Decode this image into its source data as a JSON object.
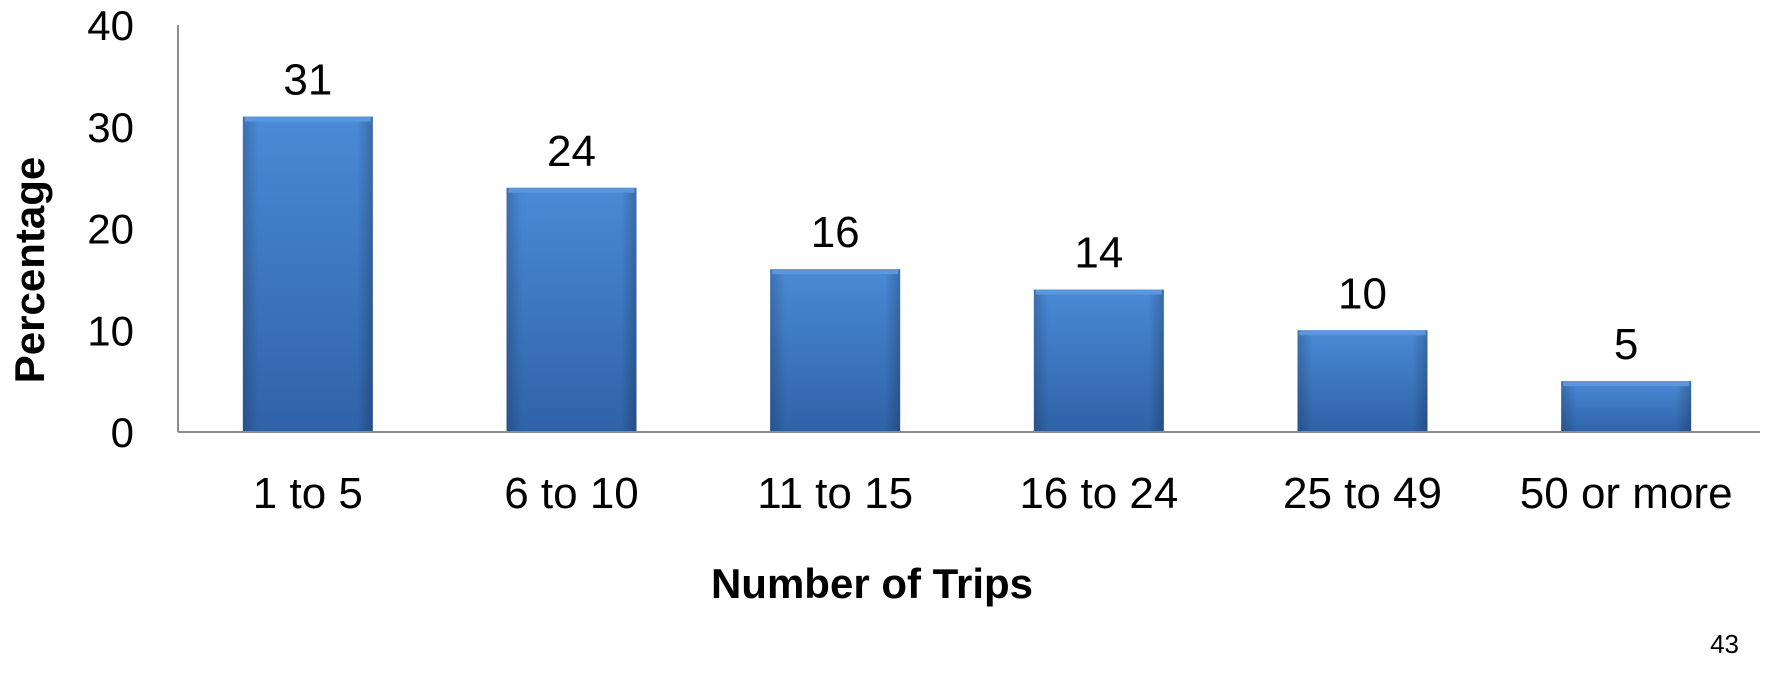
{
  "chart_data": {
    "type": "bar",
    "categories": [
      "1 to 5",
      "6 to 10",
      "11 to 15",
      "16 to 24",
      "25 to 49",
      "50 or more"
    ],
    "values": [
      31,
      24,
      16,
      14,
      10,
      5
    ],
    "data_labels": [
      "31",
      "24",
      "16",
      "14",
      "10",
      "5"
    ],
    "title": "",
    "xlabel": "Number of Trips",
    "ylabel": "Percentage",
    "ylim": [
      0,
      40
    ],
    "yticks": [
      0,
      10,
      20,
      30,
      40
    ],
    "grid": false,
    "legend": "none",
    "colors": {
      "bar": "#3f7fc8",
      "bar_dark": "#2f62a8",
      "bar_light": "#5a97dc",
      "axis": "#8c8c8c"
    }
  },
  "page_number": "43"
}
